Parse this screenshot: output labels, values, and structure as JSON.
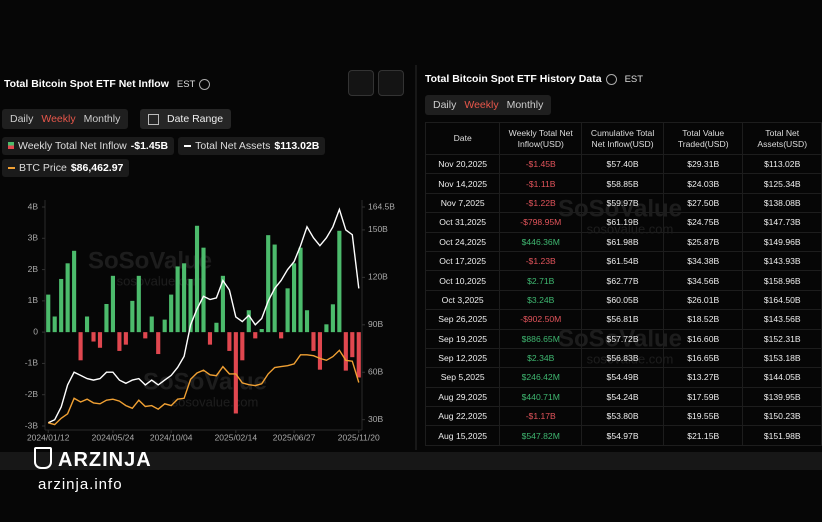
{
  "chart_panel": {
    "title": "Total Bitcoin Spot ETF Net Inflow",
    "timezone": "EST",
    "tabs": [
      "Daily",
      "Weekly",
      "Monthly"
    ],
    "active_tab": 1,
    "date_range": "Date Range"
  },
  "chart_data": {
    "type": "bar",
    "categories": [
      "2024/01/12",
      null,
      null,
      null,
      null,
      null,
      null,
      null,
      null,
      null,
      "2024/05/24",
      null,
      null,
      null,
      null,
      null,
      null,
      null,
      null,
      "2024/10/04",
      null,
      null,
      null,
      null,
      null,
      null,
      null,
      null,
      null,
      "2025/02/14",
      null,
      null,
      null,
      null,
      null,
      null,
      null,
      null,
      "2025/06/27",
      null,
      null,
      null,
      null,
      null,
      null,
      null,
      null,
      null,
      "2025/11/20"
    ],
    "ylim": [
      -3,
      4
    ],
    "yticks": [
      {
        "value": -3,
        "label": "-3B"
      },
      {
        "value": -2,
        "label": "-2B"
      },
      {
        "value": -1,
        "label": "-1B"
      },
      0,
      {
        "value": 1,
        "label": "1B"
      },
      {
        "value": 2,
        "label": "2B"
      },
      {
        "value": 3,
        "label": "3B"
      },
      {
        "value": 4,
        "label": "4B"
      }
    ],
    "y2lim": [
      26,
      164.5
    ],
    "y2ticks": [
      {
        "value": 30,
        "label": "30B"
      },
      {
        "value": 60,
        "label": "60B"
      },
      {
        "value": 90,
        "label": "90B"
      },
      {
        "value": 120,
        "label": "120B"
      },
      {
        "value": 150,
        "label": "150B"
      },
      {
        "value": 164.5,
        "label": "164.5B"
      }
    ],
    "y3lim": [
      38500,
      280000
    ],
    "grid": false,
    "series": [
      {
        "name": "Weekly Total Net Inflow",
        "type": "bar",
        "color": "#4cbb6c",
        "negative_color": "#e0474f",
        "latest": "-$1.45B",
        "values": [
          1.2,
          0.5,
          1.7,
          2.2,
          2.6,
          -0.9,
          0.5,
          -0.3,
          -0.5,
          0.9,
          1.8,
          -0.6,
          -0.4,
          1.0,
          1.8,
          -0.2,
          0.5,
          -0.7,
          0.4,
          1.2,
          2.1,
          2.2,
          1.7,
          3.4,
          2.7,
          -0.4,
          0.3,
          1.8,
          -0.6,
          -2.6,
          -0.9,
          0.7,
          -0.2,
          0.1,
          3.1,
          2.8,
          -0.2,
          1.4,
          2.2,
          2.7,
          0.7,
          -0.6,
          -1.2,
          0.25,
          0.89,
          3.24,
          -1.23,
          -0.8,
          -1.45
        ]
      },
      {
        "name": "Total Net Assets",
        "type": "line",
        "color": "#ffffff",
        "axis": "y2",
        "latest": "$113.02B",
        "values": [
          28,
          30,
          38,
          52,
          60,
          58,
          56,
          55,
          56,
          60,
          60,
          55,
          53,
          55,
          56,
          52,
          55,
          52,
          55,
          58,
          63,
          70,
          90,
          100,
          108,
          106,
          107,
          118,
          112,
          95,
          92,
          96,
          90,
          94,
          105,
          113,
          118,
          125,
          130,
          140,
          152,
          145,
          140,
          145,
          152,
          163,
          150,
          147,
          113
        ]
      },
      {
        "name": "BTC Price",
        "type": "line",
        "color": "#f0a033",
        "axis": "y3",
        "latest": "$86,462.97",
        "values": [
          42000,
          40000,
          47000,
          52000,
          69000,
          65000,
          68000,
          64000,
          63000,
          67000,
          68000,
          66000,
          61000,
          58000,
          67000,
          60000,
          61000,
          57000,
          63000,
          61000,
          68000,
          69000,
          90000,
          97000,
          100000,
          95000,
          94000,
          104000,
          96000,
          96000,
          86000,
          84000,
          83000,
          85000,
          96000,
          103000,
          104000,
          105000,
          107000,
          117000,
          117000,
          116000,
          113000,
          111000,
          115000,
          122000,
          111000,
          110000,
          86462.97
        ]
      }
    ]
  },
  "watermark": {
    "brand": "SoSoValue",
    "site": "sosovalue.com"
  },
  "table_panel": {
    "title": "Total Bitcoin Spot ETF History Data",
    "timezone": "EST",
    "tabs": [
      "Daily",
      "Weekly",
      "Monthly"
    ],
    "active_tab": 1,
    "positive_color": "#3fb871",
    "negative_color": "#e2545b",
    "columns": [
      "Date",
      "Weekly Total Net Inflow(USD)",
      "Cumulative Total Net Inflow(USD)",
      "Total Value Traded(USD)",
      "Total Net Assets(USD)"
    ],
    "rows": [
      [
        "Nov 20,2025",
        "-$1.45B",
        "$57.40B",
        "$29.31B",
        "$113.02B"
      ],
      [
        "Nov 14,2025",
        "-$1.11B",
        "$58.85B",
        "$24.03B",
        "$125.34B"
      ],
      [
        "Nov 7,2025",
        "-$1.22B",
        "$59.97B",
        "$27.50B",
        "$138.08B"
      ],
      [
        "Oct 31,2025",
        "-$798.95M",
        "$61.19B",
        "$24.75B",
        "$147.73B"
      ],
      [
        "Oct 24,2025",
        "$446.36M",
        "$61.98B",
        "$25.87B",
        "$149.96B"
      ],
      [
        "Oct 17,2025",
        "-$1.23B",
        "$61.54B",
        "$34.38B",
        "$143.93B"
      ],
      [
        "Oct 10,2025",
        "$2.71B",
        "$62.77B",
        "$34.56B",
        "$158.96B"
      ],
      [
        "Oct 3,2025",
        "$3.24B",
        "$60.05B",
        "$26.01B",
        "$164.50B"
      ],
      [
        "Sep 26,2025",
        "-$902.50M",
        "$56.81B",
        "$18.52B",
        "$143.56B"
      ],
      [
        "Sep 19,2025",
        "$886.65M",
        "$57.72B",
        "$16.60B",
        "$152.31B"
      ],
      [
        "Sep 12,2025",
        "$2.34B",
        "$56.83B",
        "$16.65B",
        "$153.18B"
      ],
      [
        "Sep 5,2025",
        "$246.42M",
        "$54.49B",
        "$13.27B",
        "$144.05B"
      ],
      [
        "Aug 29,2025",
        "$440.71M",
        "$54.24B",
        "$17.59B",
        "$139.95B"
      ],
      [
        "Aug 22,2025",
        "-$1.17B",
        "$53.80B",
        "$19.55B",
        "$150.23B"
      ],
      [
        "Aug 15,2025",
        "$547.82M",
        "$54.97B",
        "$21.15B",
        "$151.98B"
      ]
    ]
  },
  "branding": {
    "name": "ARZINJA",
    "site": "arzinja.info"
  }
}
